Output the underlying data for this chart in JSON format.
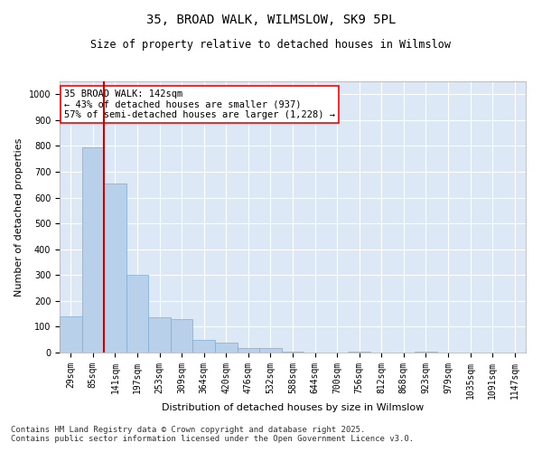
{
  "title": "35, BROAD WALK, WILMSLOW, SK9 5PL",
  "subtitle": "Size of property relative to detached houses in Wilmslow",
  "xlabel": "Distribution of detached houses by size in Wilmslow",
  "ylabel": "Number of detached properties",
  "bar_color": "#b8d0ea",
  "bar_edge_color": "#7aadd4",
  "background_color": "#ffffff",
  "plot_bg_color": "#dce8f5",
  "grid_color": "#ffffff",
  "vline_color": "#cc0000",
  "vline_x_index": 2,
  "bin_labels": [
    "29sqm",
    "85sqm",
    "141sqm",
    "197sqm",
    "253sqm",
    "309sqm",
    "364sqm",
    "420sqm",
    "476sqm",
    "532sqm",
    "588sqm",
    "644sqm",
    "700sqm",
    "756sqm",
    "812sqm",
    "868sqm",
    "923sqm",
    "979sqm",
    "1035sqm",
    "1091sqm",
    "1147sqm"
  ],
  "bar_heights": [
    140,
    795,
    655,
    300,
    135,
    130,
    50,
    38,
    18,
    18,
    5,
    0,
    0,
    4,
    0,
    0,
    4,
    0,
    0,
    0,
    0
  ],
  "ylim": [
    0,
    1050
  ],
  "yticks": [
    0,
    100,
    200,
    300,
    400,
    500,
    600,
    700,
    800,
    900,
    1000
  ],
  "annotation_text": "35 BROAD WALK: 142sqm\n← 43% of detached houses are smaller (937)\n57% of semi-detached houses are larger (1,228) →",
  "footer_text": "Contains HM Land Registry data © Crown copyright and database right 2025.\nContains public sector information licensed under the Open Government Licence v3.0.",
  "title_fontsize": 10,
  "subtitle_fontsize": 8.5,
  "axis_label_fontsize": 8,
  "tick_fontsize": 7,
  "annotation_fontsize": 7.5,
  "footer_fontsize": 6.5
}
